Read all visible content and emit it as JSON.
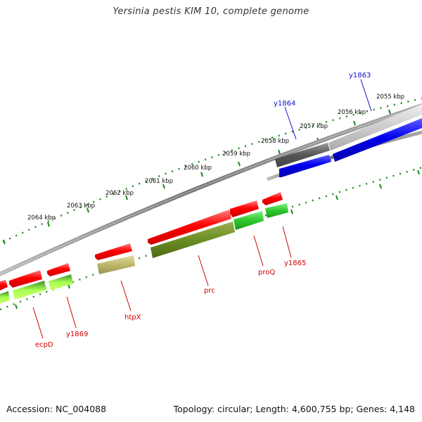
{
  "title": "Yersinia pestis KIM 10, complete genome",
  "footer": {
    "accession": "Accession: NC_004088",
    "stats": "Topology: circular; Length: 4,600,755 bp; Genes: 4,148"
  },
  "ruler": {
    "labels": [
      "2055 kbp",
      "2056 kbp",
      "2057 kbp",
      "2058 kbp",
      "2059 kbp",
      "2060 kbp",
      "2061 kbp",
      "2062 kbp",
      "2063 kbp",
      "2064 kbp"
    ]
  },
  "genes": {
    "y1863": "y1863",
    "y1864": "y1864",
    "y1865": "y1865",
    "proQ": "proQ",
    "prc": "prc",
    "htpX": "htpX",
    "y1869": "y1869",
    "ecpD": "ecpD"
  },
  "colors": {
    "forward_gene": "#1a1aff",
    "reverse_gene": "#ff1a1a",
    "cds_green": "#33cc33",
    "cds_olive": "#6b8e23",
    "cds_khaki": "#bdb76b",
    "backbone": "#888888",
    "ticks": "#1a8a1a"
  }
}
